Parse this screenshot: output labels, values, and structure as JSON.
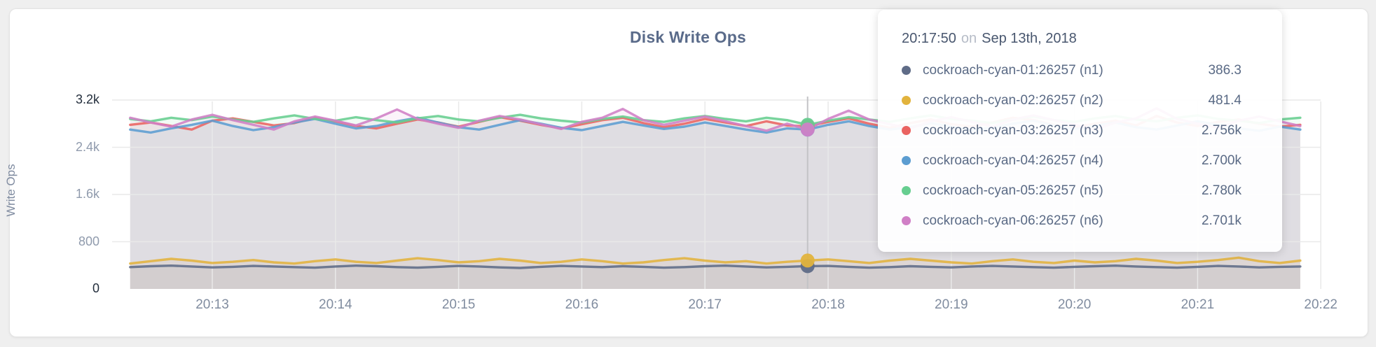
{
  "panel": {
    "title": "Disk Write Ops"
  },
  "tooltip": {
    "time": "20:17:50",
    "conjunction": "on",
    "date": "Sep 13th, 2018",
    "rows": [
      {
        "dot_icon": "series-dot",
        "label": "cockroach-cyan-01:26257 (n1)",
        "value": "386.3",
        "color": "#5F6C87"
      },
      {
        "dot_icon": "series-dot",
        "label": "cockroach-cyan-02:26257 (n2)",
        "value": "481.4",
        "color": "#E2B33D"
      },
      {
        "dot_icon": "series-dot",
        "label": "cockroach-cyan-03:26257 (n3)",
        "value": "2.756k",
        "color": "#EA6361"
      },
      {
        "dot_icon": "series-dot",
        "label": "cockroach-cyan-04:26257 (n4)",
        "value": "2.700k",
        "color": "#5C9DD1"
      },
      {
        "dot_icon": "series-dot",
        "label": "cockroach-cyan-05:26257 (n5)",
        "value": "2.780k",
        "color": "#67CE90"
      },
      {
        "dot_icon": "series-dot",
        "label": "cockroach-cyan-06:26257 (n6)",
        "value": "2.701k",
        "color": "#D07FC6"
      }
    ]
  },
  "chart_data": {
    "type": "line",
    "title": "Disk Write Ops",
    "xlabel": "",
    "ylabel": "Write Ops",
    "ylim": [
      0,
      3200
    ],
    "grid": true,
    "legend_position": "tooltip-overlay",
    "y_ticks": [
      {
        "value": 0,
        "label": "0"
      },
      {
        "value": 800,
        "label": "800"
      },
      {
        "value": 1600,
        "label": "1.6k"
      },
      {
        "value": 2400,
        "label": "2.4k"
      },
      {
        "value": 3200,
        "label": "3.2k"
      }
    ],
    "x_ticks": [
      "20:13",
      "20:14",
      "20:15",
      "20:16",
      "20:17",
      "20:18",
      "20:19",
      "20:20",
      "20:21",
      "20:22"
    ],
    "x_start_minutes": 12.3333,
    "x_step_minutes": 0.16667,
    "hover_index": 33,
    "hover_time": "20:17:50",
    "series": [
      {
        "name": "cockroach-cyan-01:26257 (n1)",
        "short": "n1",
        "color": "#5F6C87",
        "hover_value": 386.3,
        "values": [
          370,
          385,
          395,
          380,
          365,
          375,
          390,
          380,
          370,
          360,
          380,
          395,
          385,
          370,
          360,
          375,
          390,
          380,
          365,
          355,
          375,
          390,
          380,
          370,
          385,
          375,
          360,
          370,
          385,
          395,
          380,
          365,
          375,
          386.3,
          390,
          375,
          360,
          370,
          385,
          375,
          365,
          380,
          390,
          380,
          370,
          360,
          375,
          385,
          395,
          380,
          370,
          360,
          375,
          390,
          380,
          365,
          375,
          380
        ]
      },
      {
        "name": "cockroach-cyan-02:26257 (n2)",
        "short": "n2",
        "color": "#E2B33D",
        "hover_value": 481.4,
        "values": [
          430,
          470,
          510,
          480,
          440,
          460,
          490,
          450,
          430,
          470,
          500,
          460,
          440,
          480,
          520,
          490,
          450,
          470,
          510,
          480,
          440,
          460,
          500,
          470,
          430,
          450,
          490,
          520,
          480,
          450,
          470,
          430,
          460,
          481.4,
          500,
          470,
          440,
          480,
          510,
          480,
          450,
          430,
          470,
          500,
          460,
          440,
          480,
          450,
          470,
          510,
          480,
          440,
          460,
          490,
          530,
          470,
          440,
          480
        ]
      },
      {
        "name": "cockroach-cyan-03:26257 (n3)",
        "short": "n3",
        "color": "#EA6361",
        "hover_value": 2756,
        "values": [
          2780,
          2820,
          2760,
          2700,
          2850,
          2890,
          2830,
          2770,
          2810,
          2900,
          2840,
          2760,
          2720,
          2800,
          2870,
          2820,
          2750,
          2830,
          2910,
          2850,
          2780,
          2720,
          2790,
          2860,
          2900,
          2810,
          2740,
          2800,
          2880,
          2820,
          2760,
          2840,
          2770,
          2756,
          2830,
          2890,
          2800,
          2730,
          2810,
          2870,
          2790,
          2750,
          2820,
          2900,
          2860,
          2780,
          2740,
          2800,
          2850,
          2770,
          2930,
          2820,
          2760,
          2830,
          2870,
          2800,
          2750,
          2780
        ]
      },
      {
        "name": "cockroach-cyan-04:26257 (n4)",
        "short": "n4",
        "color": "#5C9DD1",
        "hover_value": 2700,
        "values": [
          2700,
          2650,
          2720,
          2780,
          2850,
          2760,
          2690,
          2740,
          2820,
          2880,
          2800,
          2720,
          2760,
          2840,
          2900,
          2820,
          2740,
          2700,
          2780,
          2860,
          2800,
          2730,
          2690,
          2760,
          2830,
          2770,
          2710,
          2750,
          2820,
          2760,
          2700,
          2650,
          2720,
          2700,
          2780,
          2840,
          2760,
          2700,
          2740,
          2810,
          2750,
          2690,
          2730,
          2800,
          2850,
          2770,
          2710,
          2760,
          2820,
          2740,
          2700,
          2770,
          2840,
          2780,
          2720,
          2680,
          2750,
          2700
        ]
      },
      {
        "name": "cockroach-cyan-05:26257 (n5)",
        "short": "n5",
        "color": "#67CE90",
        "hover_value": 2780,
        "values": [
          2880,
          2840,
          2900,
          2860,
          2920,
          2870,
          2830,
          2890,
          2940,
          2880,
          2850,
          2910,
          2860,
          2820,
          2890,
          2930,
          2870,
          2840,
          2900,
          2950,
          2890,
          2850,
          2820,
          2880,
          2920,
          2860,
          2830,
          2890,
          2930,
          2880,
          2840,
          2900,
          2860,
          2780,
          2850,
          2910,
          2870,
          2830,
          2890,
          2940,
          2880,
          2850,
          2810,
          2870,
          2920,
          2860,
          2830,
          2890,
          2930,
          2870,
          2840,
          2900,
          2940,
          2880,
          2850,
          2810,
          2870,
          2900
        ]
      },
      {
        "name": "cockroach-cyan-06:26257 (n6)",
        "short": "n6",
        "color": "#D07FC6",
        "hover_value": 2701,
        "values": [
          2900,
          2820,
          2750,
          2870,
          2950,
          2860,
          2780,
          2700,
          2840,
          2920,
          2850,
          2770,
          2890,
          3040,
          2880,
          2800,
          2730,
          2850,
          2930,
          2870,
          2790,
          2710,
          2830,
          2900,
          3050,
          2860,
          2780,
          2850,
          2920,
          2840,
          2760,
          2680,
          2800,
          2701,
          2880,
          3020,
          2870,
          2790,
          2720,
          2840,
          2910,
          2830,
          2750,
          2870,
          2940,
          2860,
          2780,
          2700,
          2820,
          2890,
          3060,
          2880,
          2800,
          2730,
          2850,
          2920,
          2840,
          2760
        ]
      }
    ]
  }
}
